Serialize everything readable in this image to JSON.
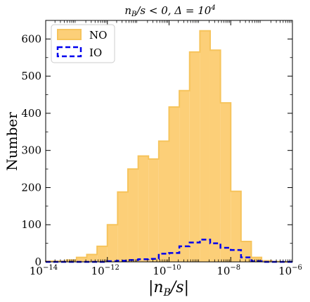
{
  "chart_data": {
    "type": "bar",
    "title_parts": {
      "lhs": "n",
      "lhs_sub": "B",
      "rel": "/s < 0, Δ = 10",
      "exp": "4"
    },
    "xlabel": {
      "pre": "|n",
      "sub": "B",
      "post": "/s|"
    },
    "ylabel": "Number",
    "x_scale": "log",
    "x_range_log10": [
      -14,
      -6
    ],
    "ylim": [
      0,
      650
    ],
    "bin_width_log10": 0.333,
    "x_ticks": [
      {
        "exp": -14,
        "label_base": "10",
        "label_exp": "−14"
      },
      {
        "exp": -12,
        "label_base": "10",
        "label_exp": "−12"
      },
      {
        "exp": -10,
        "label_base": "10",
        "label_exp": "−10"
      },
      {
        "exp": -8,
        "label_base": "10",
        "label_exp": "−8"
      },
      {
        "exp": -6,
        "label_base": "10",
        "label_exp": "−6"
      }
    ],
    "y_ticks": [
      {
        "value": 0,
        "label": "0"
      },
      {
        "value": 100,
        "label": "100"
      },
      {
        "value": 200,
        "label": "200"
      },
      {
        "value": 300,
        "label": "300"
      },
      {
        "value": 400,
        "label": "400"
      },
      {
        "value": 500,
        "label": "500"
      },
      {
        "value": 600,
        "label": "600"
      }
    ],
    "legend_placement": "top-left",
    "series": [
      {
        "name": "NO",
        "style": "filled",
        "color": "#fccf78",
        "edge_color": "#f6c45c",
        "bin_left_log10": [
          -14.0,
          -13.667,
          -13.333,
          -13.0,
          -12.667,
          -12.333,
          -12.0,
          -11.667,
          -11.333,
          -11.0,
          -10.667,
          -10.333,
          -10.0,
          -9.667,
          -9.333,
          -9.0,
          -8.667,
          -8.333,
          -8.0,
          -7.667,
          -7.333,
          -7.0,
          -6.667,
          -6.333
        ],
        "values": [
          2,
          2,
          5,
          12,
          20,
          42,
          100,
          188,
          250,
          285,
          277,
          325,
          417,
          461,
          565,
          622,
          570,
          428,
          190,
          55,
          12,
          3,
          1,
          0
        ]
      },
      {
        "name": "IO",
        "style": "step-dashed",
        "color": "#0000ee",
        "bin_left_log10": [
          -14.0,
          -13.667,
          -13.333,
          -13.0,
          -12.667,
          -12.333,
          -12.0,
          -11.667,
          -11.333,
          -11.0,
          -10.667,
          -10.333,
          -10.0,
          -9.667,
          -9.333,
          -9.0,
          -8.667,
          -8.333,
          -8.0,
          -7.667,
          -7.333,
          -7.0,
          -6.667,
          -6.333
        ],
        "values": [
          0,
          0,
          0,
          0,
          0,
          0,
          2,
          3,
          5,
          7,
          8,
          22,
          24,
          42,
          52,
          60,
          50,
          38,
          32,
          12,
          2,
          0,
          0,
          0
        ]
      }
    ]
  }
}
